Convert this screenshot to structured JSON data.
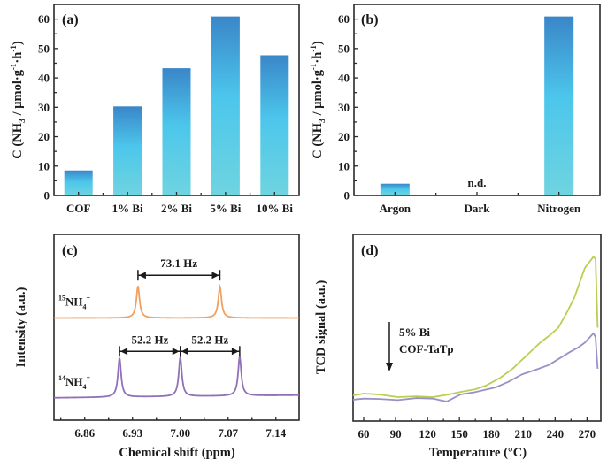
{
  "chart_data": [
    {
      "panel": "(a)",
      "type": "bar",
      "title": "",
      "xlabel": "",
      "ylabel": "C (NH3 / μmol·g⁻¹·h⁻¹)",
      "ylabel_parts": {
        "pre": "C (NH",
        "sub": "3",
        "mid": " / μmol·g",
        "sup1": "-1",
        "dot": "·h",
        "sup2": "-1",
        "post": ")"
      },
      "categories": [
        "COF",
        "1% Bi",
        "2% Bi",
        "5% Bi",
        "10% Bi"
      ],
      "values": [
        8.5,
        30.3,
        43.3,
        60.9,
        47.7
      ],
      "ylim": [
        0,
        65
      ],
      "yticks": [
        0,
        10,
        20,
        30,
        40,
        50,
        60
      ],
      "grid": false,
      "bar_gradient": {
        "top": "#3a86c8",
        "middle": "#4cc6ec",
        "bottom": "#6fd4e0"
      }
    },
    {
      "panel": "(b)",
      "type": "bar",
      "title": "",
      "xlabel": "",
      "ylabel": "C (NH3 / μmol·g⁻¹·h⁻¹)",
      "ylabel_parts": {
        "pre": "C (NH",
        "sub": "3",
        "mid": " / μmol·g",
        "sup1": "-1",
        "dot": "·h",
        "sup2": "-1",
        "post": ")"
      },
      "categories": [
        "Argon",
        "Dark",
        "Nitrogen"
      ],
      "values": [
        4.0,
        null,
        60.9
      ],
      "annotations": [
        {
          "category": "Dark",
          "text": "n.d."
        }
      ],
      "ylim": [
        0,
        65
      ],
      "yticks": [
        0,
        10,
        20,
        30,
        40,
        50,
        60
      ],
      "grid": false,
      "bar_gradient": {
        "top": "#3a86c8",
        "middle": "#4cc6ec",
        "bottom": "#6fd4e0"
      }
    },
    {
      "panel": "(c)",
      "type": "line",
      "title": "",
      "xlabel": "Chemical shift (ppm)",
      "ylabel": "Intensity (a.u.)",
      "xlim": [
        6.815,
        7.174
      ],
      "xticks": [
        "6.86",
        "6.93",
        "7.00",
        "7.07",
        "7.14"
      ],
      "ylim": [
        0,
        100
      ],
      "series": [
        {
          "name": "15NH4+",
          "label_sup_pre": "15",
          "label_main": "NH",
          "label_sub": "4",
          "label_sup_post": "+",
          "color": "#f0a060",
          "baseline": 55,
          "peak_height": 17,
          "peaks_ppm": [
            6.938,
            7.058
          ]
        },
        {
          "name": "14NH4+",
          "label_sup_pre": "14",
          "label_main": "NH",
          "label_sub": "4",
          "label_sup_post": "+",
          "color": "#9070b8",
          "baseline": 12,
          "peak_height": 21,
          "peaks_ppm": [
            6.911,
            7.0,
            7.087
          ]
        }
      ],
      "annotations": [
        {
          "text": "73.1 Hz",
          "from_ppm": 6.938,
          "to_ppm": 7.058,
          "level": 78
        },
        {
          "text": "52.2 Hz",
          "from_ppm": 6.911,
          "to_ppm": 7.0,
          "level": 37
        },
        {
          "text": "52.2 Hz",
          "from_ppm": 7.0,
          "to_ppm": 7.087,
          "level": 37
        }
      ]
    },
    {
      "panel": "(d)",
      "type": "line",
      "title": "",
      "xlabel": "Temperature (°C)",
      "ylabel": "TCD signal (a.u.)",
      "xlim": [
        50,
        283
      ],
      "xticks": [
        60,
        90,
        120,
        150,
        180,
        210,
        240,
        270
      ],
      "ylim": [
        0,
        100
      ],
      "series": [
        {
          "name": "5% Bi",
          "color": "#b8d050",
          "x": [
            50,
            60,
            75,
            92,
            110,
            125,
            140,
            151,
            165,
            175,
            188,
            200,
            213,
            226,
            235,
            243,
            250,
            258,
            263,
            268,
            272,
            276,
            278,
            280
          ],
          "y": [
            13.7,
            14.7,
            14.2,
            12.8,
            13.2,
            12.8,
            14.2,
            15.6,
            17.0,
            19.0,
            23.0,
            28.0,
            35.0,
            42.0,
            46.0,
            50.0,
            57.0,
            66.0,
            74.0,
            82.0,
            85.0,
            88.0,
            87.0,
            50.0
          ]
        },
        {
          "name": "COF-TaTp",
          "color": "#9a90c8",
          "x": [
            50,
            60,
            75,
            92,
            110,
            125,
            138,
            151,
            165,
            184,
            196,
            209,
            222,
            234,
            244,
            254,
            262,
            268,
            272,
            276,
            278,
            280
          ],
          "y": [
            11.4,
            12.0,
            11.8,
            11.2,
            12.3,
            12.0,
            10.4,
            14.2,
            15.5,
            18.0,
            21.0,
            25.0,
            27.5,
            30.0,
            33.5,
            37.0,
            39.5,
            42.0,
            44.5,
            47.0,
            45.0,
            28.0
          ]
        }
      ],
      "annotations": [
        {
          "type": "arrow-down",
          "text_lines": [
            "5% Bi",
            "COF-TaTp"
          ]
        }
      ]
    }
  ]
}
